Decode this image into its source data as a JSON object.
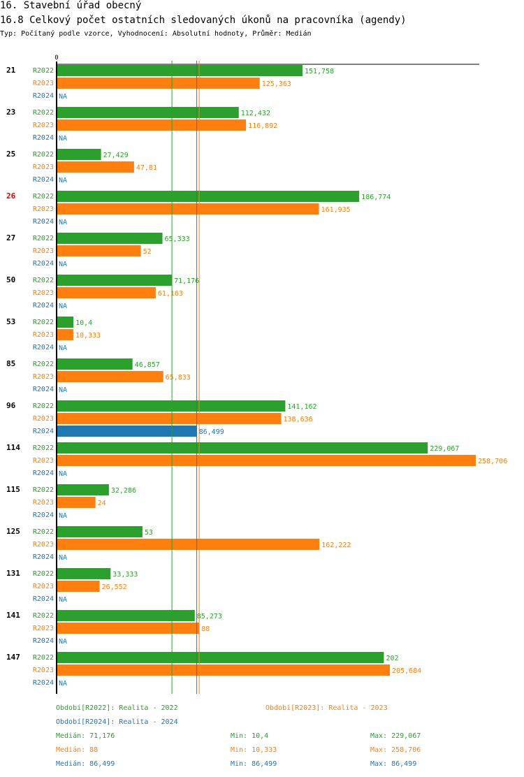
{
  "header": {
    "title": "16. Stavební úřad obecný",
    "subtitle": "16.8 Celkový počet ostatních sledovaných úkonů na pracovníka (agendy)",
    "info": "Typ: Počítaný podle vzorce, Vyhodnocení: Absolutní hodnoty, Průměr: Medián"
  },
  "colors": {
    "R2022": "#2ca02c",
    "R2023": "#ff7f0e",
    "R2024": "#1f77b4",
    "highlight": "#e00000",
    "text": "#000000"
  },
  "chart_data": {
    "type": "bar",
    "orientation": "horizontal",
    "axis_zero_label": "0",
    "xlim": [
      0,
      258.706
    ],
    "series_names": [
      "R2022",
      "R2023",
      "R2024"
    ],
    "na_label": "NA",
    "highlighted_category": "26",
    "categories": [
      "21",
      "23",
      "25",
      "26",
      "27",
      "50",
      "53",
      "85",
      "96",
      "114",
      "115",
      "125",
      "131",
      "141",
      "147"
    ],
    "series": [
      {
        "name": "R2022",
        "values": [
          151.758,
          112.432,
          27.429,
          186.774,
          65.333,
          71.176,
          10.4,
          46.857,
          141.162,
          229.067,
          32.286,
          53,
          33.333,
          85.273,
          202
        ],
        "labels": [
          "151,758",
          "112,432",
          "27,429",
          "186,774",
          "65,333",
          "71,176",
          "10,4",
          "46,857",
          "141,162",
          "229,067",
          "32,286",
          "53",
          "33,333",
          "85,273",
          "202"
        ]
      },
      {
        "name": "R2023",
        "values": [
          125.363,
          116.892,
          47.81,
          161.935,
          52,
          61.163,
          10.333,
          65.833,
          138.636,
          258.706,
          24,
          162.222,
          26.552,
          88,
          205.684
        ],
        "labels": [
          "125,363",
          "116,892",
          "47,81",
          "161,935",
          "52",
          "61,163",
          "10,333",
          "65,833",
          "138,636",
          "258,706",
          "24",
          "162,222",
          "26,552",
          "88",
          "205,684"
        ]
      },
      {
        "name": "R2024",
        "values": [
          null,
          null,
          null,
          null,
          null,
          null,
          null,
          null,
          86.499,
          null,
          null,
          null,
          null,
          null,
          null
        ],
        "labels": [
          "NA",
          "NA",
          "NA",
          "NA",
          "NA",
          "NA",
          "NA",
          "NA",
          "86,499",
          "NA",
          "NA",
          "NA",
          "NA",
          "NA",
          "NA"
        ]
      }
    ],
    "medians": {
      "R2022": 71.176,
      "R2023": 88,
      "R2024": 86.499
    }
  },
  "legend": {
    "periods": [
      {
        "key": "R2022",
        "text": "Období[R2022]: Realita - 2022"
      },
      {
        "key": "R2023",
        "text": "Období[R2023]: Realita - 2023"
      },
      {
        "key": "R2024",
        "text": "Období[R2024]: Realita - 2024"
      }
    ],
    "stats": [
      {
        "key": "R2022",
        "median": "Medián: 71,176",
        "min": "Min: 10,4",
        "max": "Max: 229,067"
      },
      {
        "key": "R2023",
        "median": "Medián: 88",
        "min": "Min: 10,333",
        "max": "Max: 258,706"
      },
      {
        "key": "R2024",
        "median": "Medián: 86,499",
        "min": "Min: 86,499",
        "max": "Max: 86,499"
      }
    ]
  }
}
